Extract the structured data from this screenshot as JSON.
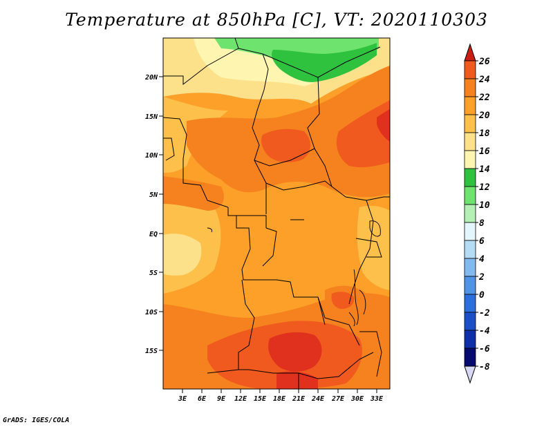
{
  "title": "Temperature at 850hPa [C], VT: 2020110303",
  "credit": "GrADS: IGES/COLA",
  "map": {
    "lat_labels": [
      "20N",
      "15N",
      "10N",
      "5N",
      "EQ",
      "5S",
      "10S",
      "15S"
    ],
    "lon_labels": [
      "3E",
      "6E",
      "9E",
      "12E",
      "15E",
      "18E",
      "21E",
      "24E",
      "27E",
      "30E",
      "33E"
    ]
  },
  "colorbar": {
    "labels": [
      "26",
      "24",
      "22",
      "20",
      "18",
      "16",
      "14",
      "12",
      "10",
      "8",
      "6",
      "4",
      "2",
      "0",
      "-2",
      "-4",
      "-6",
      "-8"
    ],
    "colors": [
      "#e0301e",
      "#f05a1e",
      "#f5821e",
      "#fca02a",
      "#fdc04a",
      "#fde08a",
      "#fdf5b0",
      "#2fc23f",
      "#6ee36e",
      "#b4f0b4",
      "#e4f6fb",
      "#b5dcf5",
      "#82b9ee",
      "#4f94e5",
      "#2a6fdb",
      "#1a4fc8",
      "#0f2fa8",
      "#060a6e"
    ],
    "top_arrow_color": "#c81e14",
    "bottom_arrow_color": "#d8d8f5"
  },
  "field_colors": {
    "t14": "#fdf5b0",
    "t16": "#fde08a",
    "t18": "#fdc04a",
    "t20": "#fca02a",
    "t22": "#f5821e",
    "t24": "#f05a1e",
    "t26": "#e0301e",
    "g10": "#6ee36e",
    "g12": "#2fc23f"
  }
}
